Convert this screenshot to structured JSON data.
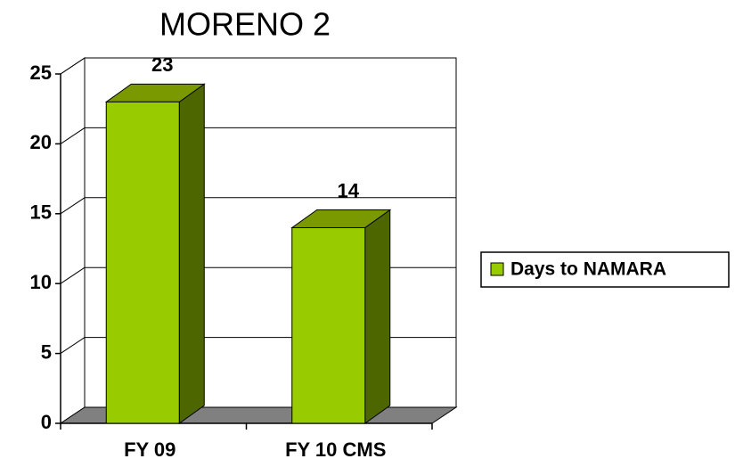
{
  "chart_data": {
    "type": "bar",
    "title": "MORENO 2",
    "categories": [
      "FY 09",
      "FY 10 CMS"
    ],
    "series": [
      {
        "name": "Days to NAMARA",
        "color": "#99cc00",
        "values": [
          23,
          14
        ]
      }
    ],
    "ylim": [
      0,
      25
    ],
    "yticks": [
      0,
      5,
      10,
      15,
      20,
      25
    ],
    "grid": true,
    "legend": "right"
  }
}
